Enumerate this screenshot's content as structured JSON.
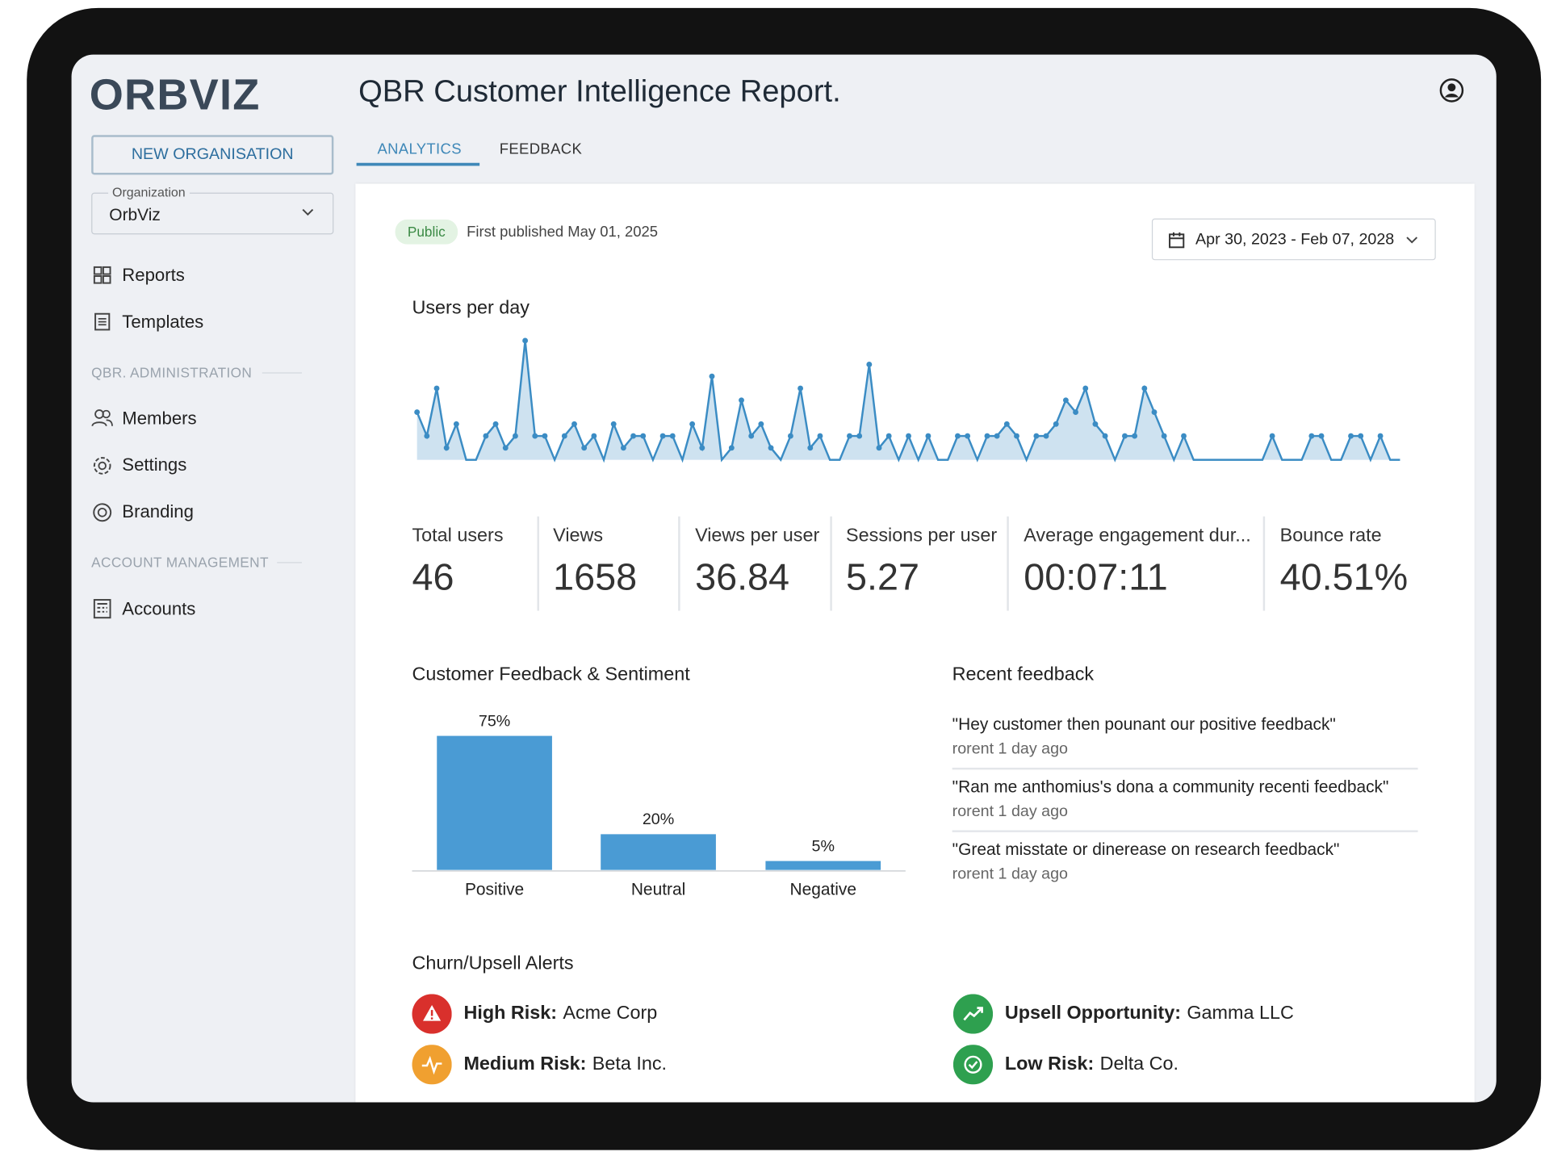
{
  "sidebar": {
    "logo": "ORBVIZ",
    "new_button": "NEW ORGANISATION",
    "org_label": "Organization",
    "org_value": "OrbViz",
    "nav": [
      "Reports",
      "Templates"
    ],
    "admin_section": "QBR. ADMINISTRATION",
    "admin_nav": [
      "Members",
      "Settings",
      "Branding"
    ],
    "account_section": "ACCOUNT MANAGEMENT",
    "account_nav": [
      "Accounts"
    ]
  },
  "header": {
    "title": "QBR Customer Intelligence Report.",
    "tabs": [
      "ANALYTICS",
      "FEEDBACK"
    ]
  },
  "report": {
    "badge": "Public",
    "published": "First published May 01, 2025",
    "date_range": "Apr 30, 2023 - Feb 07, 2028"
  },
  "metrics": [
    {
      "label": "Total users",
      "value": "46"
    },
    {
      "label": "Views",
      "value": "1658"
    },
    {
      "label": "Views per user",
      "value": "36.84"
    },
    {
      "label": "Sessions per user",
      "value": "5.27"
    },
    {
      "label": "Average engagement dur...",
      "value": "00:07:11"
    },
    {
      "label": "Bounce rate",
      "value": "40.51%"
    }
  ],
  "chart_data": [
    {
      "type": "line",
      "title": "Users per day",
      "color": "#3b8cc4",
      "values": [
        4,
        2,
        6,
        1,
        3,
        0,
        0,
        2,
        3,
        1,
        2,
        10,
        2,
        2,
        0,
        2,
        3,
        1,
        2,
        0,
        3,
        1,
        2,
        2,
        0,
        2,
        2,
        0,
        3,
        1,
        7,
        0,
        1,
        5,
        2,
        3,
        1,
        0,
        2,
        6,
        1,
        2,
        0,
        0,
        2,
        2,
        8,
        1,
        2,
        0,
        2,
        0,
        2,
        0,
        0,
        2,
        2,
        0,
        2,
        2,
        3,
        2,
        0,
        2,
        2,
        3,
        5,
        4,
        6,
        3,
        2,
        0,
        2,
        2,
        6,
        4,
        2,
        0,
        2,
        0,
        0,
        0,
        0,
        0,
        0,
        0,
        0,
        2,
        0,
        0,
        0,
        2,
        2,
        0,
        0,
        2,
        2,
        0,
        2,
        0,
        0
      ]
    },
    {
      "type": "bar",
      "title": "Customer Feedback & Sentiment",
      "color": "#4a9bd4",
      "categories": [
        "Positive",
        "Neutral",
        "Negative"
      ],
      "values": [
        75,
        20,
        5
      ],
      "value_labels": [
        "75%",
        "20%",
        "5%"
      ]
    }
  ],
  "recent_feedback": {
    "title": "Recent feedback",
    "items": [
      {
        "quote": "\"Hey customer then pounant our positive feedback\"",
        "meta": "rorent 1 day ago"
      },
      {
        "quote": "\"Ran me anthomius's dona a community recenti feedback\"",
        "meta": "rorent 1 day ago"
      },
      {
        "quote": "\"Great misstate or dinerease on research feedback\"",
        "meta": "rorent 1 day ago"
      }
    ]
  },
  "alerts": {
    "title": "Churn/Upsell Alerts",
    "items": [
      {
        "label": "High Risk:",
        "name": "Acme Corp",
        "color": "#d9302c"
      },
      {
        "label": "Medium Risk:",
        "name": "Beta Inc.",
        "color": "#f0a030"
      },
      {
        "label": "Upsell Opportunity:",
        "name": "Gamma LLC",
        "color": "#2ea04f"
      },
      {
        "label": "Low Risk:",
        "name": "Delta Co.",
        "color": "#2ea04f"
      }
    ]
  }
}
